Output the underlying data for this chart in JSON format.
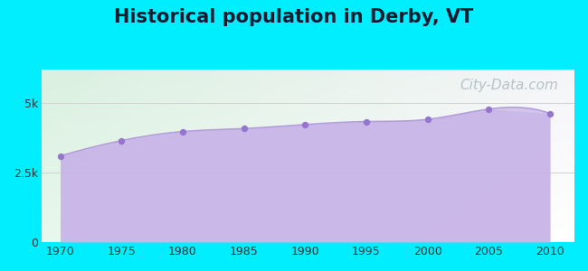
{
  "title": "Historical population in Derby, VT",
  "title_fontsize": 15,
  "title_fontweight": "bold",
  "years": [
    1970,
    1975,
    1980,
    1985,
    1990,
    1995,
    2000,
    2005,
    2010
  ],
  "population": [
    3094,
    3645,
    3970,
    4076,
    4222,
    4329,
    4408,
    4777,
    4622
  ],
  "line_color": "#b39ddb",
  "fill_color": "#c8b4e8",
  "fill_alpha": 0.75,
  "marker_color": "#9575cd",
  "marker_size": 28,
  "yticks": [
    0,
    2500,
    5000
  ],
  "ytick_labels": [
    "0",
    "2.5k",
    "5k"
  ],
  "ylim": [
    0,
    6200
  ],
  "xlim": [
    1968.5,
    2012
  ],
  "background_outer": "#00eeff",
  "grid_color": "#d0d0d0",
  "watermark_text": "City-Data.com",
  "watermark_color": "#aabbc0",
  "watermark_fontsize": 11,
  "tick_fontsize": 9,
  "xticks": [
    1970,
    1975,
    1980,
    1985,
    1990,
    1995,
    2000,
    2005,
    2010
  ],
  "bg_top_left": "#daf0e0",
  "bg_top_right": "#f5f5f8",
  "bg_bottom": "#ffffff"
}
